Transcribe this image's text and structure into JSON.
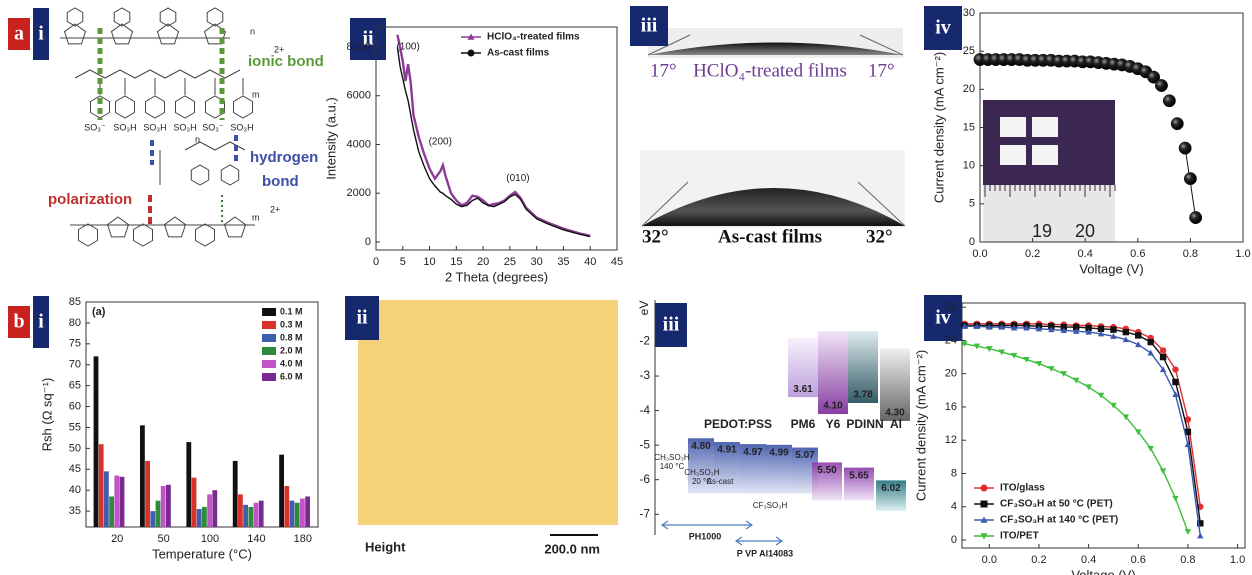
{
  "panel_labels": [
    "a",
    "i",
    "ii",
    "iii",
    "iv",
    "b",
    "i",
    "ii",
    "iii",
    "iv"
  ],
  "structure": {
    "ionic_bond": "ionic bond",
    "hydrogen_bond": [
      "hydrogen",
      "bond"
    ],
    "polarization": "polarization",
    "groups": [
      "SO₃⁻",
      "SO₃H",
      "SO₃H",
      "SO₃H",
      "SO₃⁻",
      "SO₃H"
    ],
    "subscripts": [
      "n",
      "m",
      "2+",
      "n",
      "m",
      "2+"
    ]
  },
  "contact_angle": {
    "top_left": "17°",
    "top_label": "HClO₄-treated films",
    "top_right": "17°",
    "bottom_left": "32°",
    "bottom_label": "As-cast films",
    "bottom_right": "32°"
  },
  "inset": {
    "ruler": [
      "19",
      "20"
    ]
  },
  "afm": {
    "caption": "Height",
    "scale": "200.0 nm"
  },
  "chart_data": [
    {
      "type": "line",
      "xlabel": "2 Theta (degrees)",
      "ylabel": "Intensity (a.u.)",
      "x": [
        4,
        4.5,
        5,
        5.5,
        6,
        6.5,
        7,
        8,
        9,
        10,
        11,
        12,
        12.5,
        13,
        14,
        15,
        16,
        17,
        18,
        19,
        20,
        21,
        22,
        23,
        24,
        25,
        26,
        27,
        28,
        30,
        32,
        35,
        38,
        40
      ],
      "series": [
        {
          "name": "HClO₄-treated films",
          "color": "#8e3a96",
          "marker": "triangle",
          "values": [
            8500,
            8000,
            7400,
            6600,
            7300,
            6500,
            5200,
            4300,
            3600,
            3000,
            2600,
            2900,
            3150,
            2700,
            2000,
            1700,
            1500,
            1600,
            1900,
            1850,
            1700,
            1500,
            1550,
            1600,
            1700,
            1900,
            2050,
            1800,
            1400,
            1000,
            800,
            550,
            350,
            250
          ]
        },
        {
          "name": "As-cast films",
          "color": "#111111",
          "marker": "circle",
          "values": [
            8000,
            7200,
            6700,
            6200,
            5800,
            5200,
            4600,
            3700,
            3100,
            2600,
            2300,
            2050,
            2000,
            1900,
            1750,
            1550,
            1450,
            1500,
            1700,
            1800,
            1600,
            1500,
            1450,
            1550,
            1650,
            1850,
            1950,
            1750,
            1350,
            950,
            750,
            500,
            320,
            220
          ]
        }
      ],
      "annotations": [
        "(100)",
        "(200)",
        "(010)"
      ],
      "xlim": [
        0,
        45
      ],
      "xticks": [
        0,
        5,
        10,
        15,
        20,
        25,
        30,
        35,
        40,
        45
      ],
      "ylim": [
        -330,
        8820
      ],
      "yticks": [
        0,
        2000,
        4000,
        6000,
        8000
      ],
      "legend": "upper right"
    },
    {
      "type": "scatter",
      "xlabel": "Voltage (V)",
      "ylabel": "Current density (mA cm⁻²)",
      "color": "#111111",
      "x": [
        0,
        0.03,
        0.06,
        0.09,
        0.12,
        0.15,
        0.18,
        0.21,
        0.24,
        0.27,
        0.3,
        0.33,
        0.36,
        0.39,
        0.42,
        0.45,
        0.48,
        0.51,
        0.54,
        0.57,
        0.6,
        0.63,
        0.66,
        0.69,
        0.72,
        0.75,
        0.78,
        0.8,
        0.82
      ],
      "values": [
        23.9,
        23.9,
        23.9,
        23.9,
        23.9,
        23.9,
        23.8,
        23.8,
        23.8,
        23.8,
        23.7,
        23.7,
        23.7,
        23.6,
        23.6,
        23.5,
        23.4,
        23.3,
        23.2,
        23.0,
        22.7,
        22.3,
        21.6,
        20.5,
        18.5,
        15.5,
        12.3,
        8.3,
        3.2
      ],
      "xlim": [
        0,
        1
      ],
      "xticks": [
        {
          "value": 0,
          "label": "0.0"
        },
        0.2,
        0.4,
        0.6,
        0.8,
        {
          "value": 1,
          "label": "1.0"
        }
      ],
      "ylim": [
        0,
        30
      ],
      "yticks": [
        0,
        5,
        10,
        15,
        20,
        25,
        30
      ]
    },
    {
      "type": "bar",
      "title": "(a)",
      "xlabel": "Temperature (°C)",
      "ylabel": "Rsh (Ω sq⁻¹)",
      "categories": [
        "20",
        "50",
        "100",
        "140",
        "180"
      ],
      "series": [
        {
          "name": "0.1 M",
          "color": "#111111",
          "values": [
            72,
            55.5,
            51.5,
            47,
            48.5
          ]
        },
        {
          "name": "0.3 M",
          "color": "#d8322a",
          "values": [
            51,
            47,
            43,
            39,
            41
          ]
        },
        {
          "name": "0.8 M",
          "color": "#3f5fae",
          "values": [
            44.5,
            35,
            35.5,
            36.5,
            37.5
          ]
        },
        {
          "name": "2.0 M",
          "color": "#2f8a3c",
          "values": [
            38.5,
            37.5,
            36,
            36,
            37
          ]
        },
        {
          "name": "4.0 M",
          "color": "#c254c8",
          "values": [
            43.5,
            41,
            39,
            37,
            38
          ]
        },
        {
          "name": "6.0 M",
          "color": "#7a2a90",
          "values": [
            43.2,
            41.3,
            40,
            37.5,
            38.5
          ]
        }
      ],
      "ylim": [
        31.2,
        85
      ],
      "yticks": [
        35,
        40,
        45,
        50,
        55,
        60,
        65,
        70,
        75,
        80,
        85
      ],
      "legend": "upper right"
    },
    {
      "type": "line",
      "xlabel": "Voltage (V)",
      "ylabel": "Current density (mA cm⁻²)",
      "x": [
        -0.1,
        -0.05,
        0,
        0.05,
        0.1,
        0.15,
        0.2,
        0.25,
        0.3,
        0.35,
        0.4,
        0.45,
        0.5,
        0.55,
        0.6,
        0.65,
        0.7,
        0.75,
        0.8,
        0.85
      ],
      "series": [
        {
          "name": "ITO/glass",
          "color": "#e03030",
          "marker": "circle",
          "values": [
            26,
            26,
            26,
            26,
            26,
            26,
            26,
            25.9,
            25.9,
            25.8,
            25.8,
            25.7,
            25.6,
            25.4,
            25.0,
            24.3,
            22.8,
            20.5,
            14.5,
            4
          ]
        },
        {
          "name": "CF₃SO₃H at 50 °C (PET)",
          "color": "#111111",
          "marker": "square",
          "values": [
            25.8,
            25.8,
            25.8,
            25.8,
            25.8,
            25.8,
            25.7,
            25.7,
            25.6,
            25.6,
            25.5,
            25.4,
            25.3,
            25.0,
            24.6,
            23.8,
            22.0,
            19.0,
            13.0,
            2
          ]
        },
        {
          "name": "CF₃SO₃H at 140 °C (PET)",
          "color": "#3a58b0",
          "marker": "triangle",
          "values": [
            25.7,
            25.7,
            25.6,
            25.6,
            25.5,
            25.5,
            25.4,
            25.3,
            25.2,
            25.1,
            25.0,
            24.8,
            24.5,
            24.1,
            23.5,
            22.5,
            20.5,
            17.5,
            11.5,
            0.5
          ]
        },
        {
          "name": "ITO/PET",
          "color": "#3cbf3c",
          "marker": "triangle-down",
          "values": [
            23.6,
            23.3,
            23.0,
            22.6,
            22.2,
            21.7,
            21.2,
            20.6,
            20.0,
            19.2,
            18.4,
            17.4,
            16.2,
            14.8,
            13.0,
            11.0,
            8.3,
            5.0,
            1.0,
            null
          ]
        }
      ],
      "xlim": [
        -0.11,
        1.03
      ],
      "xticks": [
        {
          "value": 0,
          "label": "0.0"
        },
        0.2,
        0.4,
        0.6,
        0.8,
        {
          "value": 1,
          "label": "1.0"
        }
      ],
      "ylim": [
        -0.96,
        28.5
      ],
      "yticks": [
        0,
        4,
        8,
        12,
        16,
        20,
        24,
        28
      ],
      "legend": "lower left"
    },
    {
      "type": "energy",
      "ylabel": "eV",
      "values": [
        -4.8,
        -4.91,
        -4.97,
        -4.99,
        -5.07,
        -5.5,
        -5.65,
        -6.02,
        -3.61,
        -4.1,
        -3.78,
        -4.3
      ],
      "value_labels": [
        "4.80",
        "4.91",
        "4.97",
        "4.99",
        "5.07",
        "5.50",
        "5.65",
        "6.02",
        "3.61",
        "4.10",
        "3.78",
        "4.30"
      ],
      "annotations": [
        "PEDOT:PSS",
        "PM6",
        "Y6",
        "PDINN",
        "Al",
        "CH₃SO₃H",
        "140 °C",
        "CH₃SO₃H",
        "20 °C",
        "As-cast",
        "CF₃SO₃H",
        "PH1000",
        "P VP Al14083"
      ],
      "ylim": [
        -7.6,
        -0.8
      ],
      "yticks": [
        -2,
        -3,
        -4,
        -5,
        -6,
        -7
      ]
    }
  ]
}
